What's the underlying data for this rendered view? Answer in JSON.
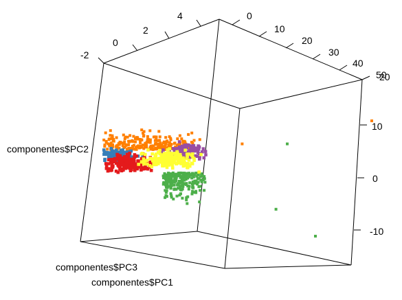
{
  "chart_data": {
    "type": "scatter",
    "dimensions": 3,
    "title": "",
    "axis_labels": {
      "pc1": "componentes$PC1",
      "pc2": "componentes$PC2",
      "pc3": "componentes$PC3"
    },
    "ticks": {
      "top_left_axis": [
        "-2",
        "0",
        "2",
        "4"
      ],
      "top_right_axis": [
        "0",
        "10",
        "20",
        "30",
        "40",
        "50"
      ],
      "right_axis": [
        "20",
        "10",
        "0",
        "-10"
      ]
    },
    "clusters": [
      {
        "name": "orange",
        "color": "#ff7f00",
        "center_pc1": 4,
        "center_pc2": 8,
        "spread": "wide"
      },
      {
        "name": "purple",
        "color": "#984ea3",
        "center_pc1": 12,
        "center_pc2": 7,
        "spread": "small"
      },
      {
        "name": "blue",
        "color": "#377eb8",
        "center_pc1": 0,
        "center_pc2": 6,
        "spread": "small"
      },
      {
        "name": "yellow",
        "color": "#ffff33",
        "center_pc1": 9,
        "center_pc2": 5,
        "spread": "medium"
      },
      {
        "name": "red",
        "color": "#e41a1c",
        "center_pc1": 2,
        "center_pc2": 4,
        "spread": "medium"
      },
      {
        "name": "green",
        "color": "#4daf4a",
        "center_pc1": 10,
        "center_pc2": 0,
        "spread": "wide"
      }
    ],
    "outliers": [
      {
        "cluster": "orange",
        "pc1": 45,
        "pc2": 15
      },
      {
        "cluster": "orange",
        "pc1": 22,
        "pc2": 9
      },
      {
        "cluster": "green",
        "pc1": 30,
        "pc2": 9
      },
      {
        "cluster": "green",
        "pc1": 28,
        "pc2": -8
      },
      {
        "cluster": "green",
        "pc1": 35,
        "pc2": -15
      }
    ]
  }
}
